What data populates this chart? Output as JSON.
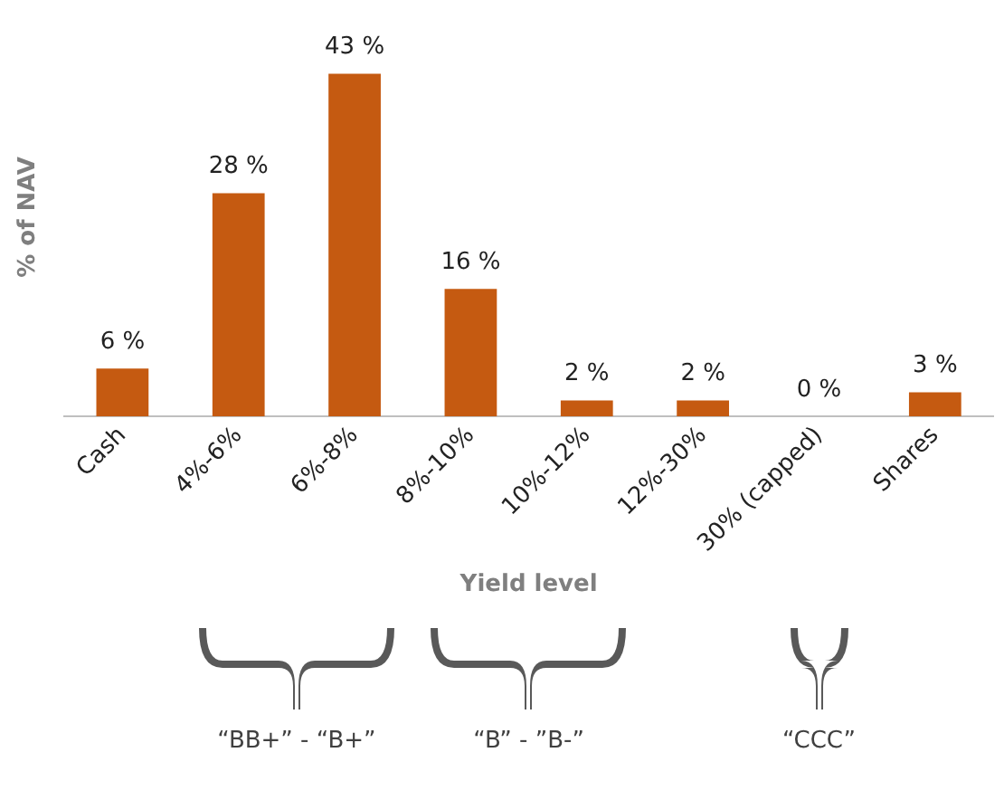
{
  "chart_data": {
    "type": "bar",
    "xlabel": "Yield level",
    "ylabel": "% of NAV",
    "categories": [
      "Cash",
      "4%-6%",
      "6%-8%",
      "8%-10%",
      "10%-12%",
      "12%-30%",
      "30% (capped)",
      "Shares"
    ],
    "values": [
      6,
      28,
      43,
      16,
      2,
      2,
      0,
      3
    ],
    "value_labels": [
      "6 %",
      "28 %",
      "43 %",
      "16 %",
      "2 %",
      "2 %",
      "0 %",
      "3 %"
    ],
    "color": "#c55a11",
    "grid": false,
    "legend": false,
    "tick_labels": "x",
    "annotations": [
      "“BB+” - “B+”",
      "“B” - ”B-”",
      "“CCC”"
    ]
  }
}
